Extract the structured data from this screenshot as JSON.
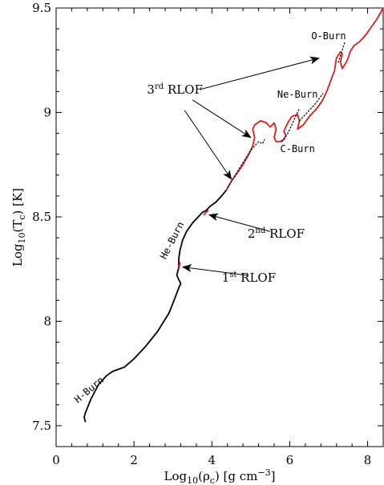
{
  "chart_data": {
    "type": "line",
    "xlabel": "Log10(ρc) [g cm−3]",
    "xlabel_parts": {
      "a": "Log",
      "b": "10",
      "c": "(ρ",
      "d": "c",
      "e": ") [g cm",
      "f": "−3",
      "g": "]"
    },
    "ylabel": "Log10(Tc) [K]",
    "ylabel_parts": {
      "a": "Log",
      "b": "10",
      "c": "(T",
      "d": "c",
      "e": ") [K]"
    },
    "xlim": [
      0,
      8.4
    ],
    "ylim": [
      7.4,
      9.5
    ],
    "xticks": [
      0,
      2,
      4,
      6,
      8
    ],
    "yticks": [
      7.5,
      8,
      8.5,
      9,
      9.5
    ],
    "xtick_labels": [
      "0",
      "2",
      "4",
      "6",
      "8"
    ],
    "ytick_labels": [
      "7.5",
      "8",
      "8.5",
      "9",
      "9.5"
    ],
    "series": [
      {
        "color": "#000000",
        "style": "solid",
        "x": [
          0.75,
          0.72,
          0.75,
          0.9,
          1.1,
          1.3,
          1.45,
          1.6,
          1.75,
          2.0,
          2.3,
          2.6,
          2.9,
          3.05,
          3.15,
          3.2,
          3.1,
          3.15,
          3.15,
          3.18,
          3.25,
          3.35,
          3.5,
          3.65,
          3.75,
          3.85,
          3.95,
          4.1,
          4.25,
          4.38
        ],
        "y": [
          7.52,
          7.54,
          7.56,
          7.63,
          7.7,
          7.74,
          7.76,
          7.77,
          7.78,
          7.82,
          7.88,
          7.95,
          8.04,
          8.11,
          8.16,
          8.18,
          8.22,
          8.26,
          8.3,
          8.34,
          8.39,
          8.43,
          8.47,
          8.5,
          8.52,
          8.53,
          8.55,
          8.57,
          8.6,
          8.63
        ]
      },
      {
        "color": "#e01b1b",
        "style": "solid",
        "x": [
          3.15,
          3.16,
          3.17,
          3.18
        ],
        "y": [
          8.25,
          8.26,
          8.27,
          8.28
        ]
      },
      {
        "color": "#e01b1b",
        "style": "solid",
        "x": [
          3.8,
          3.85,
          3.9
        ],
        "y": [
          8.51,
          8.52,
          8.53
        ]
      },
      {
        "color": "#e01b1b",
        "style": "solid",
        "x": [
          4.38,
          4.5,
          4.65,
          4.8,
          4.95,
          5.05,
          5.1,
          5.05,
          5.1,
          5.25,
          5.4,
          5.5,
          5.6,
          5.65,
          5.6,
          5.65,
          5.75,
          5.85,
          5.9,
          5.85,
          5.95,
          6.05,
          6.2,
          6.25,
          6.2,
          6.35,
          6.5,
          6.6,
          6.7,
          6.85,
          6.95,
          7.05,
          7.15,
          7.2,
          7.3,
          7.35,
          7.3,
          7.35,
          7.45,
          7.5,
          7.55,
          7.65,
          7.8,
          7.95,
          8.1,
          8.25,
          8.4
        ],
        "y": [
          8.63,
          8.67,
          8.71,
          8.75,
          8.8,
          8.84,
          8.88,
          8.92,
          8.94,
          8.96,
          8.95,
          8.93,
          8.95,
          8.92,
          8.88,
          8.86,
          8.86,
          8.87,
          8.89,
          8.91,
          8.95,
          8.98,
          8.99,
          8.96,
          8.92,
          8.94,
          8.98,
          9.0,
          9.02,
          9.06,
          9.1,
          9.15,
          9.2,
          9.26,
          9.29,
          9.28,
          9.24,
          9.21,
          9.24,
          9.26,
          9.29,
          9.32,
          9.34,
          9.37,
          9.41,
          9.45,
          9.5
        ]
      },
      {
        "color": "#000000",
        "style": "dotted",
        "x": [
          4.4,
          4.7,
          5.0,
          5.2,
          5.3,
          5.35
        ],
        "y": [
          8.64,
          8.73,
          8.82,
          8.86,
          8.85,
          8.87
        ]
      },
      {
        "color": "#000000",
        "style": "dotted",
        "x": [
          5.8,
          5.95,
          6.1,
          6.25
        ],
        "y": [
          8.86,
          8.9,
          8.96,
          9.02
        ]
      },
      {
        "color": "#000000",
        "style": "dotted",
        "x": [
          6.25,
          6.45,
          6.65,
          6.85
        ],
        "y": [
          8.96,
          9.0,
          9.04,
          9.09
        ]
      },
      {
        "color": "#000000",
        "style": "dotted",
        "x": [
          7.25,
          7.35,
          7.42
        ],
        "y": [
          9.24,
          9.3,
          9.34
        ]
      }
    ],
    "annotations": [
      {
        "text": "O-Burn",
        "x": 7.0,
        "y": 9.35,
        "rotate": 0
      },
      {
        "text": "Ne-Burn",
        "x": 6.2,
        "y": 9.07,
        "rotate": 0
      },
      {
        "text": "C-Burn",
        "x": 6.2,
        "y": 8.81,
        "rotate": 0
      },
      {
        "text": "He-Burn",
        "x": 3.05,
        "y": 8.38,
        "rotate": -63
      },
      {
        "text": "H-Burn",
        "x": 0.9,
        "y": 7.66,
        "rotate": -40
      }
    ],
    "rlof_labels": [
      {
        "key": "rlof3",
        "num": "3",
        "sup": "rd",
        "word": " RLOF",
        "x": 3.05,
        "y": 9.09
      },
      {
        "key": "rlof2",
        "num": "2",
        "sup": "nd",
        "word": " RLOF",
        "x": 5.65,
        "y": 8.4
      },
      {
        "key": "rlof1",
        "num": "1",
        "sup": "st",
        "word": " RLOF",
        "x": 4.95,
        "y": 8.19
      }
    ],
    "arrows": [
      {
        "from": [
          3.7,
          9.11
        ],
        "to": [
          6.75,
          9.26
        ]
      },
      {
        "from": [
          3.5,
          9.06
        ],
        "to": [
          5.0,
          8.88
        ]
      },
      {
        "from": [
          3.3,
          9.01
        ],
        "to": [
          4.5,
          8.68
        ]
      },
      {
        "from": [
          5.5,
          8.43
        ],
        "to": [
          3.93,
          8.51
        ]
      },
      {
        "from": [
          4.9,
          8.22
        ],
        "to": [
          3.25,
          8.26
        ]
      }
    ]
  }
}
